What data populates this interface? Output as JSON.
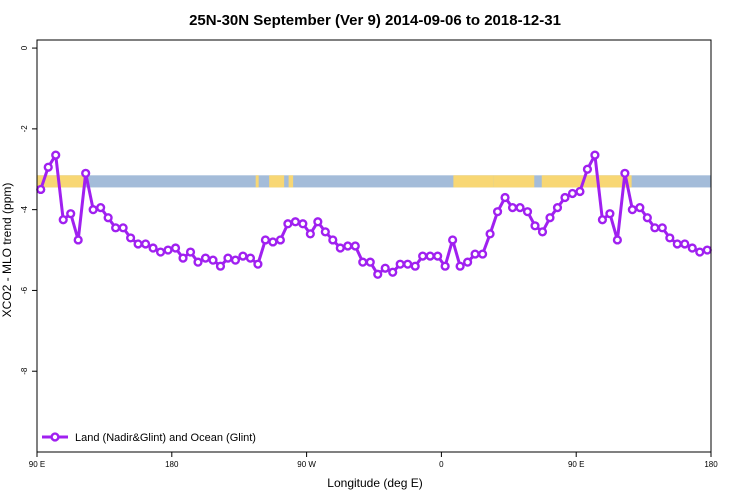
{
  "chart_data": {
    "type": "line",
    "title": "25N-30N September (Ver 9)   2014-09-06 to 2018-12-31",
    "xlabel": "Longitude (deg E)",
    "ylabel": "XCO2 - MLO trend (ppm)",
    "xlim": [
      90,
      540
    ],
    "ylim": [
      -10,
      0.2
    ],
    "x_ticks": [
      {
        "value": 90,
        "label": "90 E"
      },
      {
        "value": 180,
        "label": "180"
      },
      {
        "value": 270,
        "label": "90 W"
      },
      {
        "value": 360,
        "label": "0"
      },
      {
        "value": 450,
        "label": "90 E"
      },
      {
        "value": 540,
        "label": "180"
      }
    ],
    "y_ticks": [
      {
        "value": 0,
        "label": "0"
      },
      {
        "value": -2,
        "label": "-2"
      },
      {
        "value": -4,
        "label": "-4"
      },
      {
        "value": -6,
        "label": "-6"
      },
      {
        "value": -8,
        "label": "-8"
      }
    ],
    "grid": false,
    "legend_position": "bottom-left",
    "series": [
      {
        "name": "Land (Nadir&Glint) and Ocean (Glint)",
        "color": "#a020f0",
        "x": [
          92.5,
          97.5,
          102.5,
          107.5,
          112.5,
          117.5,
          122.5,
          127.5,
          132.5,
          137.5,
          142.5,
          147.5,
          152.5,
          157.5,
          162.5,
          167.5,
          172.5,
          177.5,
          182.5,
          187.5,
          192.5,
          197.5,
          202.5,
          207.5,
          212.5,
          217.5,
          222.5,
          227.5,
          232.5,
          237.5,
          242.5,
          247.5,
          252.5,
          257.5,
          262.5,
          267.5,
          272.5,
          277.5,
          282.5,
          287.5,
          292.5,
          297.5,
          302.5,
          307.5,
          312.5,
          317.5,
          322.5,
          327.5,
          332.5,
          337.5,
          342.5,
          347.5,
          352.5,
          357.5,
          362.5,
          367.5,
          372.5,
          377.5,
          382.5,
          387.5,
          392.5,
          397.5,
          402.5,
          407.5,
          412.5,
          417.5,
          422.5,
          427.5,
          432.5,
          437.5,
          442.5,
          447.5,
          452.5,
          457.5,
          462.5,
          467.5,
          472.5,
          477.5,
          482.5,
          487.5,
          492.5,
          497.5,
          502.5,
          507.5,
          512.5,
          517.5,
          522.5,
          527.5,
          532.5,
          537.5
        ],
        "y": [
          -3.5,
          -2.95,
          -2.65,
          -4.25,
          -4.1,
          -4.75,
          -3.1,
          -4.0,
          -3.95,
          -4.2,
          -4.45,
          -4.45,
          -4.7,
          -4.85,
          -4.85,
          -4.95,
          -5.05,
          -5.0,
          -4.95,
          -5.2,
          -5.05,
          -5.3,
          -5.2,
          -5.25,
          -5.4,
          -5.2,
          -5.25,
          -5.15,
          -5.2,
          -5.35,
          -4.75,
          -4.8,
          -4.75,
          -4.35,
          -4.3,
          -4.35,
          -4.6,
          -4.3,
          -4.55,
          -4.75,
          -4.95,
          -4.9,
          -4.9,
          -5.3,
          -5.3,
          -5.6,
          -5.45,
          -5.55,
          -5.35,
          -5.35,
          -5.4,
          -5.15,
          -5.15,
          -5.15,
          -5.4,
          -4.75,
          -5.4,
          -5.3,
          -5.1,
          -5.1,
          -4.6,
          -4.05,
          -3.7,
          -3.95,
          -3.95,
          -4.05,
          -4.4,
          -4.55,
          -4.2,
          -3.95,
          -3.7,
          -3.6,
          -3.55,
          -3.0,
          -2.65,
          -4.25,
          -4.1,
          -4.75,
          -3.1,
          -4.0,
          -3.95,
          -4.2,
          -4.45,
          -4.45,
          -4.7,
          -4.85,
          -4.85,
          -4.95,
          -5.05,
          -5.0
        ]
      }
    ],
    "band": {
      "y_top": -3.15,
      "y_bottom": -3.45,
      "ocean_color": "#a4bcd9",
      "land_color": "#f8d774",
      "land_segments": [
        [
          90,
          121
        ],
        [
          236,
          238
        ],
        [
          245,
          255
        ],
        [
          258,
          261
        ],
        [
          368,
          395
        ],
        [
          395,
          422
        ],
        [
          427,
          487
        ]
      ]
    }
  }
}
